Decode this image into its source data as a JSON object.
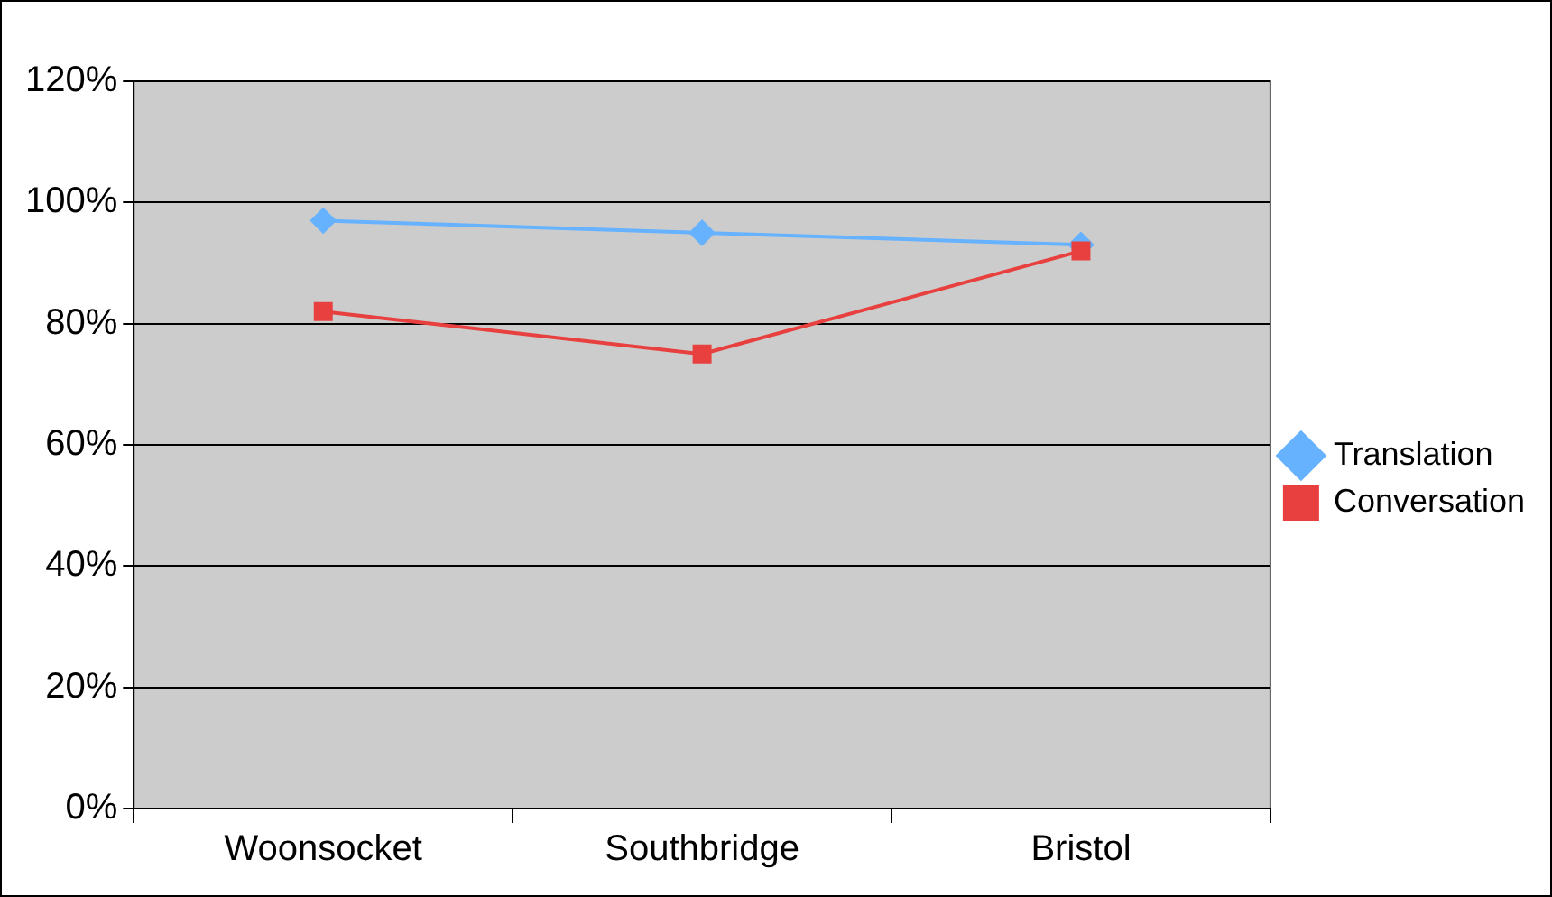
{
  "chart_data": {
    "type": "line",
    "categories": [
      "Woonsocket",
      "Southbridge",
      "Bristol"
    ],
    "series": [
      {
        "name": "Translation",
        "color": "#66b2ff",
        "values": [
          97,
          95,
          93
        ],
        "marker": "diamond"
      },
      {
        "name": "Conversation",
        "color": "#e8403f",
        "values": [
          82,
          75,
          92
        ],
        "marker": "square"
      }
    ],
    "ylim": [
      0,
      120
    ],
    "yticks": [
      {
        "value": 0,
        "label": "0%"
      },
      {
        "value": 20,
        "label": "20%"
      },
      {
        "value": 40,
        "label": "40%"
      },
      {
        "value": 60,
        "label": "60%"
      },
      {
        "value": 80,
        "label": "80%"
      },
      {
        "value": 100,
        "label": "100%"
      },
      {
        "value": 120,
        "label": "120%"
      }
    ],
    "grid": "y",
    "legend": "right"
  }
}
